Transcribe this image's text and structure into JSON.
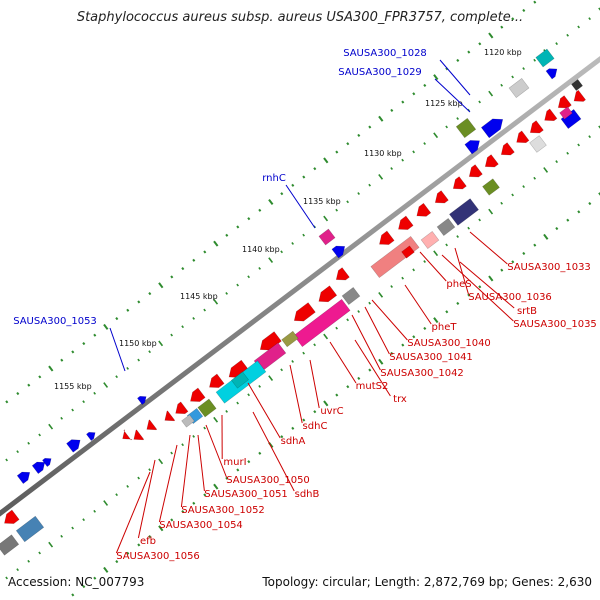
{
  "title": "Staphylococcus aureus subsp. aureus USA300_FPR3757, complete...",
  "accession": "Accession: NC_007793",
  "stats": "Topology: circular; Length: 2,872,769 bp; Genes: 2,630",
  "colors": {
    "forward_label": "#0000cc",
    "reverse_label": "#cc0000",
    "backbone": "#808080",
    "tick": "#2e8b2e"
  },
  "kbp_ticks": [
    "1120 kbp",
    "1125 kbp",
    "1130 kbp",
    "1135 kbp",
    "1140 kbp",
    "1145 kbp",
    "1150 kbp",
    "1155 kbp"
  ],
  "forward_labels": [
    "SAUSA300_1028",
    "SAUSA300_1029",
    "rnhC",
    "SAUSA300_1053"
  ],
  "reverse_labels": [
    "SAUSA300_1033",
    "SAUSA300_1036",
    "srtB",
    "SAUSA300_1035",
    "pheS",
    "pheT",
    "SAUSA300_1040",
    "SAUSA300_1041",
    "SAUSA300_1042",
    "mutS2",
    "trx",
    "uvrC",
    "sdhC",
    "sdhA",
    "murI",
    "SAUSA300_1050",
    "sdhB",
    "SAUSA300_1051",
    "SAUSA300_1052",
    "SAUSA300_1054",
    "efb",
    "SAUSA300_1056"
  ]
}
